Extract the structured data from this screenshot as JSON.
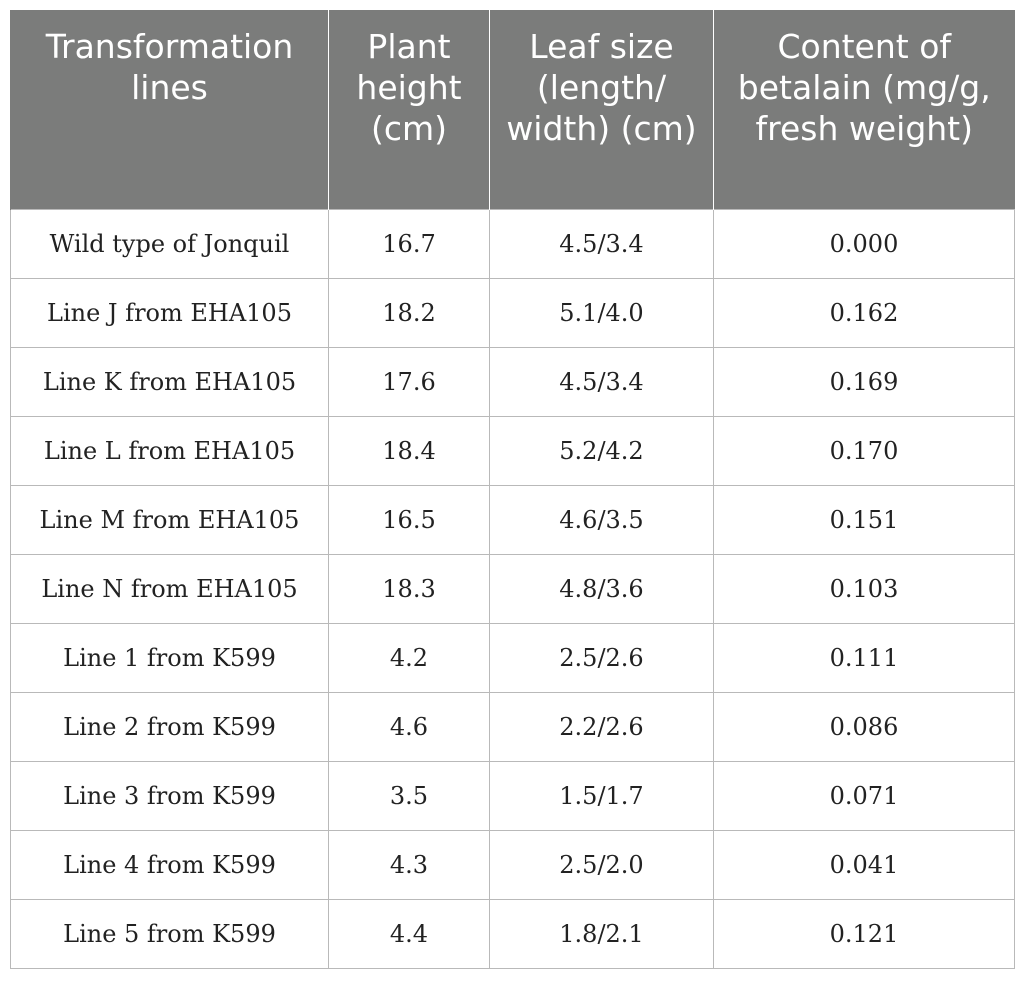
{
  "table": {
    "headers": [
      "Transformation lines",
      "Plant height (cm)",
      "Leaf size (length/ width) (cm)",
      "Content of betalain (mg/g, fresh weight)"
    ],
    "rows": [
      [
        "Wild type of Jonquil",
        "16.7",
        "4.5/3.4",
        "0.000"
      ],
      [
        "Line J from EHA105",
        "18.2",
        "5.1/4.0",
        "0.162"
      ],
      [
        "Line K from EHA105",
        "17.6",
        "4.5/3.4",
        "0.169"
      ],
      [
        "Line L from EHA105",
        "18.4",
        "5.2/4.2",
        "0.170"
      ],
      [
        "Line M from EHA105",
        "16.5",
        "4.6/3.5",
        "0.151"
      ],
      [
        "Line N from EHA105",
        "18.3",
        "4.8/3.6",
        "0.103"
      ],
      [
        "Line 1 from K599",
        "4.2",
        "2.5/2.6",
        "0.111"
      ],
      [
        "Line 2 from K599",
        "4.6",
        "2.2/2.6",
        "0.086"
      ],
      [
        "Line 3 from K599",
        "3.5",
        "1.5/1.7",
        "0.071"
      ],
      [
        "Line 4 from K599",
        "4.3",
        "2.5/2.0",
        "0.041"
      ],
      [
        "Line 5 from K599",
        "4.4",
        "1.8/2.1",
        "0.121"
      ]
    ]
  }
}
